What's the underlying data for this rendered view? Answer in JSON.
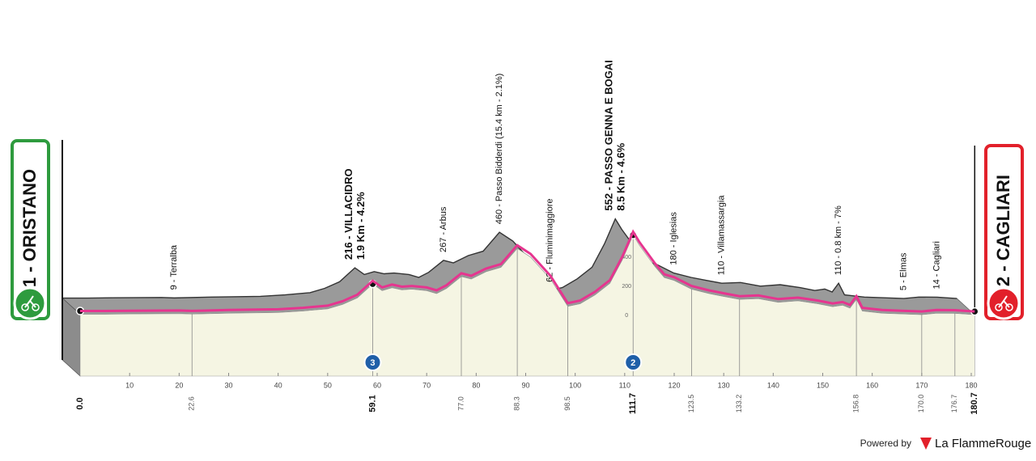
{
  "chart_data": {
    "type": "area",
    "x_unit": "km",
    "y_unit": "m",
    "x": [
      0,
      5,
      10,
      20,
      22.6,
      30,
      40,
      45,
      50,
      53,
      56,
      59.1,
      61,
      63,
      65,
      67,
      70,
      72,
      74,
      77,
      79,
      82,
      85,
      88.3,
      91,
      95,
      98.5,
      101,
      104,
      107,
      109.5,
      111.7,
      113,
      116,
      118,
      120,
      123.5,
      127,
      130,
      133.2,
      137,
      141,
      145,
      149,
      152,
      154,
      155.5,
      156.8,
      158,
      162,
      166,
      170,
      173,
      176.7,
      178.5,
      180.7
    ],
    "values": [
      8,
      8,
      10,
      12,
      9,
      15,
      20,
      30,
      45,
      75,
      120,
      216,
      170,
      190,
      175,
      180,
      170,
      150,
      185,
      267,
      250,
      300,
      330,
      460,
      400,
      250,
      62,
      80,
      140,
      220,
      380,
      552,
      480,
      340,
      260,
      240,
      180,
      150,
      130,
      110,
      115,
      90,
      100,
      80,
      60,
      70,
      50,
      110,
      30,
      15,
      10,
      5,
      15,
      14,
      10,
      5
    ],
    "xlim": [
      0,
      180
    ],
    "ylim": [
      0,
      400
    ],
    "xticks": [
      10,
      20,
      30,
      40,
      50,
      60,
      70,
      80,
      90,
      100,
      110,
      120,
      130,
      140,
      150,
      160,
      170,
      180
    ],
    "yticks": [
      0,
      200,
      400
    ],
    "colors": {
      "line": "#e6358f",
      "face": "#f5f5e3",
      "top": "#9a9a9a",
      "start": "#2e9b3e",
      "finish": "#e2202a",
      "climb": "#1f5fa8"
    },
    "start": {
      "label": "1 - ORISTANO",
      "km": {
        "value": 0,
        "label": "0.0"
      }
    },
    "finish": {
      "label": "2 - CAGLIARI",
      "km": 180.7
    },
    "waypoints": [
      {
        "km": 22.6,
        "label": "9 - Terralba"
      },
      {
        "km": 59.1,
        "label": "216 - VILLACIDRO",
        "detail": "1.9 Km - 4.2%",
        "major": true
      },
      {
        "km": {
          "value": 77,
          "label": "77.0"
        },
        "label": "267 - Arbus"
      },
      {
        "km": 88.3,
        "label": "460 - Passo Bidderdi (15.4 km - 2.1%)"
      },
      {
        "km": 98.5,
        "label": "62 - Fluminimaggiore"
      },
      {
        "km": 111.7,
        "label": "552 - PASSO GENNA E BOGAI",
        "detail": "8.5 Km - 4.6%",
        "major": true
      },
      {
        "km": 123.5,
        "label": "180 - Iglesias"
      },
      {
        "km": 133.2,
        "label": "110 - Villamassargia"
      },
      {
        "km": 156.8,
        "label": "110 - 0.8 km - 7%"
      },
      {
        "km": {
          "value": 170,
          "label": "170.0"
        },
        "label": "5 - Elmas"
      },
      {
        "km": 176.7,
        "label": "14 - Cagliari"
      }
    ],
    "climbs": [
      {
        "km": 59.1,
        "category": 3
      },
      {
        "km": 111.7,
        "category": 2
      }
    ],
    "footer": {
      "powered": "Powered by",
      "brand": "La FlammeRouge"
    }
  }
}
